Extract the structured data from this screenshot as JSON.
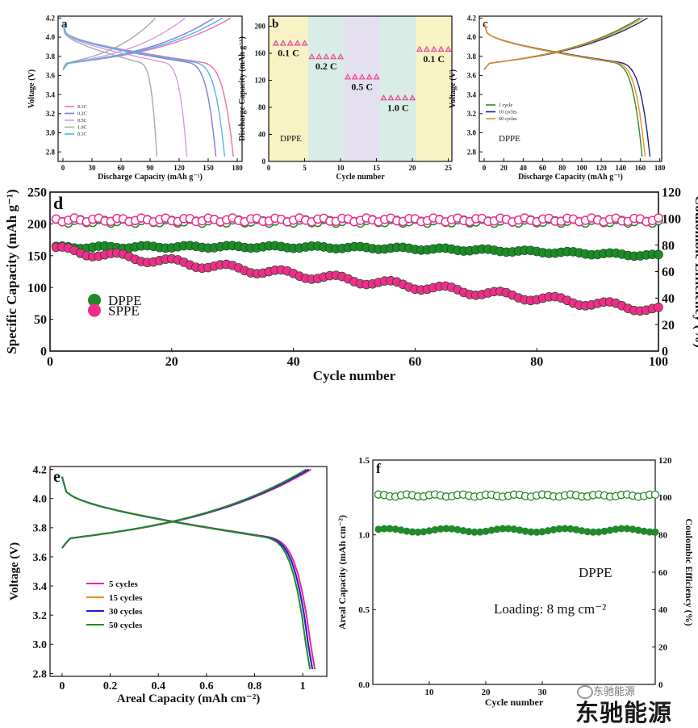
{
  "chart_data": [
    {
      "panel": "a",
      "type": "line",
      "xlabel": "Discharge Capacity (mAh g⁻¹)",
      "ylabel": "Voltage (V)",
      "xlim": [
        -5,
        185
      ],
      "ylim": [
        2.7,
        4.22
      ],
      "xticks": [
        0,
        30,
        60,
        90,
        120,
        150,
        180
      ],
      "yticks": [
        2.8,
        3.0,
        3.2,
        3.4,
        3.6,
        3.8,
        4.0,
        4.2
      ],
      "legend": [
        "0.1C",
        "0.2C",
        "0.5C",
        "1.0C",
        "0.1C"
      ],
      "series": [
        {
          "name": "0.1C",
          "color": "#f06eaa",
          "capacity": 176
        },
        {
          "name": "0.2C",
          "color": "#7b7fe0",
          "capacity": 158
        },
        {
          "name": "0.5C",
          "color": "#d69ae6",
          "capacity": 128
        },
        {
          "name": "1.0C",
          "color": "#aaaaaa",
          "capacity": 97
        },
        {
          "name": "0.1C",
          "color": "#4fb6e8",
          "capacity": 167
        }
      ]
    },
    {
      "panel": "b",
      "type": "scatter",
      "xlabel": "Cycle number",
      "ylabel": "Discharge Capacity (mAh g⁻¹)",
      "xlim": [
        0,
        25.5
      ],
      "ylim": [
        0,
        215
      ],
      "xticks": [
        0,
        5,
        10,
        15,
        20,
        25
      ],
      "yticks": [
        0,
        40,
        80,
        120,
        160,
        200
      ],
      "annotation": "DPPE",
      "segments": [
        {
          "label": "0.1 C",
          "from": 0,
          "to": 5.5,
          "value": 175,
          "bg": "#f7f3c4"
        },
        {
          "label": "0.2 C",
          "from": 5.5,
          "to": 10.5,
          "value": 155,
          "bg": "#d8ede6"
        },
        {
          "label": "0.5 C",
          "from": 10.5,
          "to": 15.5,
          "value": 125,
          "bg": "#e4e0ef"
        },
        {
          "label": "1.0 C",
          "from": 15.5,
          "to": 20.5,
          "value": 94,
          "bg": "#d8ede6"
        },
        {
          "label": "0.1 C",
          "from": 20.5,
          "to": 25.5,
          "value": 166,
          "bg": "#f7f3c4"
        }
      ]
    },
    {
      "panel": "c",
      "type": "line",
      "xlabel": "Discharge Capacity (mAh g⁻¹)",
      "ylabel": "Voltage (V)",
      "xlim": [
        -5,
        182
      ],
      "ylim": [
        2.7,
        4.22
      ],
      "xticks": [
        0,
        20,
        40,
        60,
        80,
        100,
        120,
        140,
        160,
        180
      ],
      "yticks": [
        2.8,
        3.0,
        3.2,
        3.4,
        3.6,
        3.8,
        4.0,
        4.2
      ],
      "annotation": "DPPE",
      "legend": [
        "1 cycle",
        "10 cycles",
        "60 cycles"
      ],
      "series": [
        {
          "name": "1 cycle",
          "color": "#2e8b2e",
          "capacity": 162
        },
        {
          "name": "10 cycles",
          "color": "#1c2280",
          "capacity": 170
        },
        {
          "name": "60 cycles",
          "color": "#f08c1e",
          "capacity": 165
        }
      ]
    },
    {
      "panel": "d",
      "type": "scatter",
      "xlabel": "Cycle number",
      "ylabel": "Specific Capacity (mAh g⁻¹)",
      "y2label": "Coulombic Efficiency (%)",
      "xlim": [
        0,
        100
      ],
      "ylim": [
        0,
        250
      ],
      "y2lim": [
        0,
        120
      ],
      "xticks": [
        0,
        20,
        40,
        60,
        80,
        100
      ],
      "yticks": [
        0,
        50,
        100,
        150,
        200,
        250
      ],
      "y2ticks": [
        0,
        20,
        40,
        60,
        80,
        100,
        120
      ],
      "series": [
        {
          "name": "DPPE",
          "color": "#1f8a2a",
          "capacity_start": 163,
          "capacity_end": 150,
          "ce": 98
        },
        {
          "name": "SPPE",
          "color": "#f02d8c",
          "capacity_start": 160,
          "capacity_end": 65,
          "ce": 99
        }
      ]
    },
    {
      "panel": "e",
      "type": "line",
      "xlabel": "Areal Capacity (mAh cm⁻²)",
      "ylabel": "Voltage (V)",
      "xlim": [
        -0.05,
        1.1
      ],
      "ylim": [
        2.78,
        4.22
      ],
      "xticks": [
        0.0,
        0.2,
        0.4,
        0.6,
        0.8,
        1.0
      ],
      "yticks": [
        2.8,
        3.0,
        3.2,
        3.4,
        3.6,
        3.8,
        4.0,
        4.2
      ],
      "legend": [
        "5 cycles",
        "15 cycles",
        "30 cycles",
        "50 cycles"
      ],
      "series": [
        {
          "name": "5 cycles",
          "color": "#e6239c",
          "capacity": 1.05
        },
        {
          "name": "15 cycles",
          "color": "#f08c1e",
          "capacity": 1.04
        },
        {
          "name": "30 cycles",
          "color": "#1d1dd6",
          "capacity": 1.04
        },
        {
          "name": "50 cycles",
          "color": "#1f8a2a",
          "capacity": 1.03
        }
      ]
    },
    {
      "panel": "f",
      "type": "scatter",
      "xlabel": "Cycle number",
      "ylabel": "Areal Capacity (mAh cm⁻²)",
      "y2label": "Coulombic Efficiency (%)",
      "xlim": [
        0,
        50
      ],
      "ylim": [
        0,
        1.5
      ],
      "y2lim": [
        0,
        120
      ],
      "xticks": [
        10,
        20,
        30
      ],
      "yticks": [
        0.0,
        0.5,
        1.0,
        1.5
      ],
      "y2ticks": [
        0,
        20,
        40,
        60,
        80,
        100,
        120
      ],
      "annotation": "DPPE",
      "annotation2": "Loading: 8 mg cm⁻²",
      "series": [
        {
          "name": "areal capacity",
          "color": "#1f8a2a",
          "value": 1.03
        },
        {
          "name": "coulombic efficiency",
          "color": "#1f8a2a",
          "value": 101
        }
      ]
    }
  ],
  "watermark": {
    "top": "东驰能源",
    "bottom": "东驰能源"
  }
}
